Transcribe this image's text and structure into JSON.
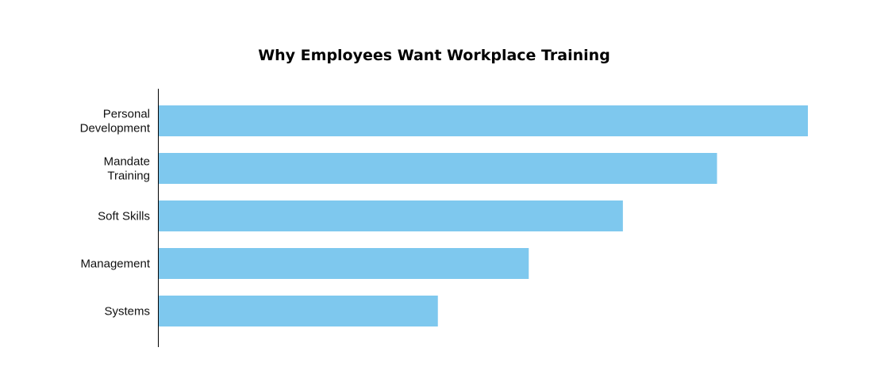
{
  "colors": {
    "background": "#ffffff",
    "bar": "#7ec8ee",
    "axis": "#000000",
    "text": "#111111"
  },
  "chart_data": {
    "type": "bar",
    "orientation": "horizontal",
    "title": "Why Employees Want Workplace Training",
    "xlabel": "",
    "ylabel": "",
    "categories": [
      [
        "Personal",
        "Development"
      ],
      [
        "Mandate",
        "Training"
      ],
      [
        "Soft Skills"
      ],
      [
        "Management"
      ],
      [
        "Systems"
      ]
    ],
    "values": [
      100,
      86,
      71.5,
      57,
      43
    ],
    "xlim": [
      0,
      100
    ],
    "grid": false,
    "legend": "none"
  }
}
